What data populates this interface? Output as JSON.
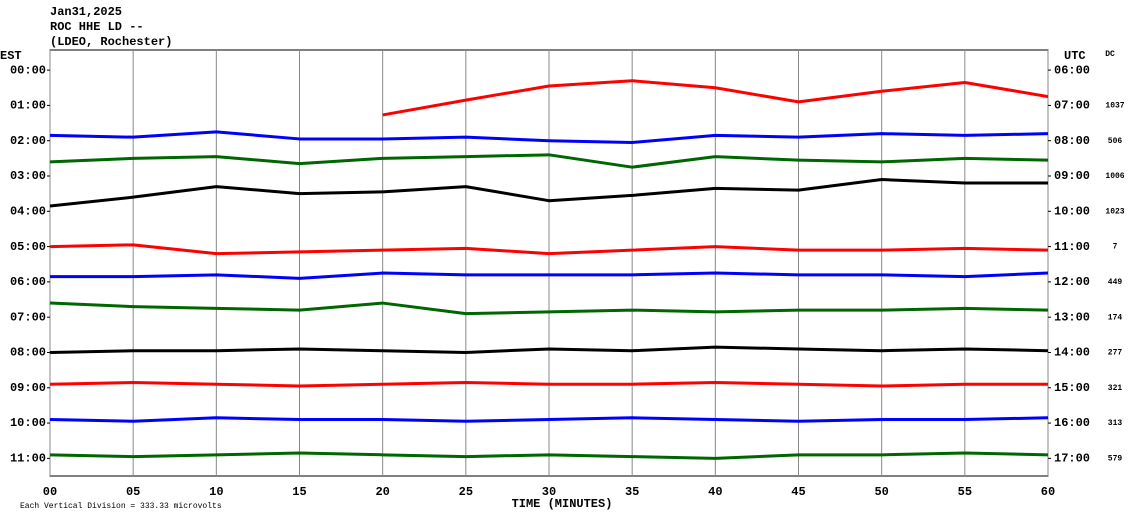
{
  "chart_data": {
    "type": "helicorder",
    "title": "Jan31,2025",
    "subtitle": "ROC HHE LD --",
    "station": "(LDEO, Rochester)",
    "left_axis_label": "EST",
    "right_axis_label": "UTC",
    "dc_label": "DC",
    "x_label": "TIME (MINUTES)",
    "footnote": "Each Vertical Division =  333.33 microvolts",
    "x": [
      0,
      5,
      10,
      15,
      20,
      25,
      30,
      35,
      40,
      45,
      50,
      55,
      60
    ],
    "xlim": [
      0,
      60
    ],
    "xticks": [
      {
        "value": 0,
        "label": "00"
      },
      {
        "value": 5,
        "label": "05"
      },
      10,
      15,
      20,
      25,
      30,
      35,
      40,
      45,
      50,
      55,
      60
    ],
    "ylim": [
      -0.57,
      11.5
    ],
    "y_inverted": true,
    "grid": true,
    "yticks": [
      {
        "value": 0,
        "label": "00:00"
      },
      {
        "value": 1,
        "label": "01:00"
      },
      {
        "value": 2,
        "label": "02:00"
      },
      {
        "value": 3,
        "label": "03:00"
      },
      {
        "value": 4,
        "label": "04:00"
      },
      {
        "value": 5,
        "label": "05:00"
      },
      {
        "value": 6,
        "label": "06:00"
      },
      {
        "value": 7,
        "label": "07:00"
      },
      {
        "value": 8,
        "label": "08:00"
      },
      {
        "value": 9,
        "label": "09:00"
      },
      {
        "value": 10,
        "label": "10:00"
      },
      {
        "value": 11,
        "label": "11:00"
      }
    ],
    "y2ticks": [
      {
        "value": 0,
        "label": "06:00"
      },
      {
        "value": 1,
        "label": "07:00"
      },
      {
        "value": 2,
        "label": "08:00"
      },
      {
        "value": 3,
        "label": "09:00"
      },
      {
        "value": 4,
        "label": "10:00"
      },
      {
        "value": 5,
        "label": "11:00"
      },
      {
        "value": 6,
        "label": "12:00"
      },
      {
        "value": 7,
        "label": "13:00"
      },
      {
        "value": 8,
        "label": "14:00"
      },
      {
        "value": 9,
        "label": "15:00"
      },
      {
        "value": 10,
        "label": "16:00"
      },
      {
        "value": 11,
        "label": "17:00"
      }
    ],
    "series": [
      {
        "color": "#ff0000",
        "dc": 1037,
        "values": [
          null,
          null,
          null,
          null,
          1.27,
          0.85,
          0.45,
          0.3,
          0.5,
          0.9,
          0.6,
          0.35,
          0.75
        ]
      },
      {
        "color": "#0000ff",
        "dc": 506,
        "values": [
          1.85,
          1.9,
          1.75,
          1.95,
          1.95,
          1.9,
          2.0,
          2.05,
          1.85,
          1.9,
          1.8,
          1.85,
          1.8
        ]
      },
      {
        "color": "#006600",
        "dc": 1006,
        "values": [
          2.6,
          2.5,
          2.45,
          2.65,
          2.5,
          2.45,
          2.4,
          2.75,
          2.45,
          2.55,
          2.6,
          2.5,
          2.55
        ]
      },
      {
        "color": "#000000",
        "dc": 1023,
        "values": [
          3.85,
          3.6,
          3.3,
          3.5,
          3.45,
          3.3,
          3.7,
          3.55,
          3.35,
          3.4,
          3.1,
          3.2,
          3.2
        ]
      },
      {
        "color": "#ff0000",
        "dc": 7,
        "values": [
          5.0,
          4.95,
          5.2,
          5.15,
          5.1,
          5.05,
          5.2,
          5.1,
          5.0,
          5.1,
          5.1,
          5.05,
          5.1
        ]
      },
      {
        "color": "#0000ff",
        "dc": 449,
        "values": [
          5.85,
          5.85,
          5.8,
          5.9,
          5.75,
          5.8,
          5.8,
          5.8,
          5.75,
          5.8,
          5.8,
          5.85,
          5.75
        ]
      },
      {
        "color": "#006600",
        "dc": 174,
        "values": [
          6.6,
          6.7,
          6.75,
          6.8,
          6.6,
          6.9,
          6.85,
          6.8,
          6.85,
          6.8,
          6.8,
          6.75,
          6.8
        ]
      },
      {
        "color": "#000000",
        "dc": 277,
        "values": [
          8.0,
          7.95,
          7.95,
          7.9,
          7.95,
          8.0,
          7.9,
          7.95,
          7.85,
          7.9,
          7.95,
          7.9,
          7.95
        ]
      },
      {
        "color": "#ff0000",
        "dc": 321,
        "values": [
          8.9,
          8.85,
          8.9,
          8.95,
          8.9,
          8.85,
          8.9,
          8.9,
          8.85,
          8.9,
          8.95,
          8.9,
          8.9
        ]
      },
      {
        "color": "#0000ff",
        "dc": 313,
        "values": [
          9.9,
          9.95,
          9.85,
          9.9,
          9.9,
          9.95,
          9.9,
          9.85,
          9.9,
          9.95,
          9.9,
          9.9,
          9.85
        ]
      },
      {
        "color": "#006600",
        "dc": 579,
        "values": [
          10.9,
          10.95,
          10.9,
          10.85,
          10.9,
          10.95,
          10.9,
          10.95,
          11.0,
          10.9,
          10.9,
          10.85,
          10.9
        ]
      }
    ]
  }
}
